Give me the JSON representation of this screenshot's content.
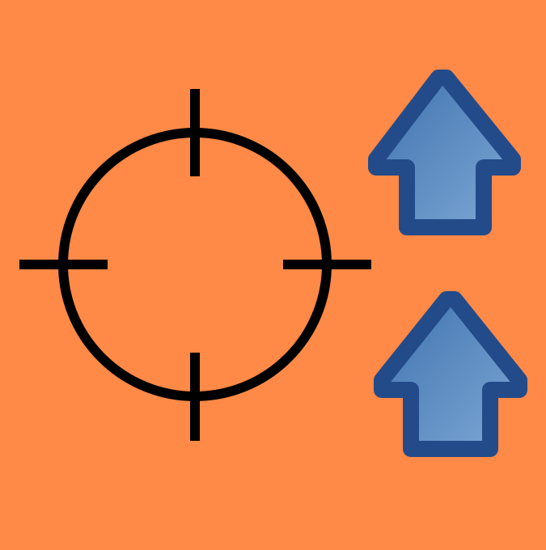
{
  "background_color": "#FF8946",
  "crosshair": {
    "icon": "crosshair-icon",
    "stroke_color": "#000000"
  },
  "arrows": {
    "icon": "arrow-up-icon",
    "count": 2,
    "outline_color": "#234B8A",
    "fill_gradient": [
      "#3F72AE",
      "#7EA8D6"
    ]
  }
}
